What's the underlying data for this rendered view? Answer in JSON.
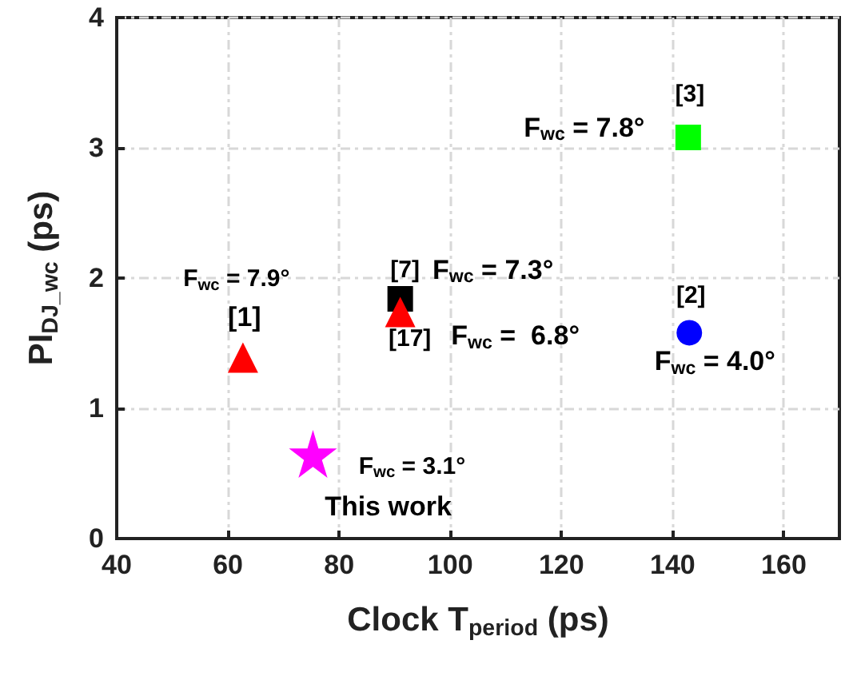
{
  "chart_data": {
    "type": "scatter",
    "xlabel": "Clock T$_{period}$ (ps)",
    "ylabel": "PI$_{DJ_wc}$ (ps)",
    "xlim": [
      40,
      170
    ],
    "xticks": [
      40,
      60,
      80,
      100,
      120,
      140,
      160
    ],
    "ylim": [
      0,
      4
    ],
    "yticks": [
      0,
      1,
      2,
      3,
      4
    ],
    "grid": true,
    "series": [
      {
        "color": "#ff0000",
        "marker": "triangle",
        "x": [
          62.7
        ],
        "values": [
          1.39
        ]
      },
      {
        "color": "#ff00ff",
        "marker": "star",
        "x": [
          75.3
        ],
        "values": [
          0.65
        ]
      },
      {
        "color": "#000000",
        "marker": "square",
        "x": [
          91
        ],
        "values": [
          1.84
        ]
      },
      {
        "color": "#ff0000",
        "marker": "triangle",
        "x": [
          91
        ],
        "values": [
          1.74
        ]
      },
      {
        "color": "#0000ff",
        "marker": "circle",
        "x": [
          143
        ],
        "values": [
          1.58
        ]
      },
      {
        "color": "#00ff00",
        "marker": "square",
        "x": [
          142.8
        ],
        "values": [
          3.08
        ]
      }
    ],
    "annotations": [
      {
        "text": "F$_{wc}$ = 7.9°",
        "x": 62.7,
        "y": 1.39
      },
      {
        "text": "[1]",
        "x": 62.7,
        "y": 1.39
      },
      {
        "text": "[7]",
        "x": 91,
        "y": 1.84
      },
      {
        "text": "F$_{wc}$ = 7.3°",
        "x": 91,
        "y": 1.84
      },
      {
        "text": "[17]",
        "x": 91,
        "y": 1.74
      },
      {
        "text": "F$_{wc}$ =  6.8°",
        "x": 91,
        "y": 1.74
      },
      {
        "text": "[2]",
        "x": 143,
        "y": 1.58
      },
      {
        "text": "F$_{wc}$ = 4.0°",
        "x": 143,
        "y": 1.58
      },
      {
        "text": "[3]",
        "x": 142.8,
        "y": 3.08
      },
      {
        "text": "F$_{wc}$ = 7.8°",
        "x": 142.8,
        "y": 3.08
      },
      {
        "text": "F$_{wc}$ = 3.1°",
        "x": 75.3,
        "y": 0.65
      },
      {
        "text": "This work",
        "x": 75.3,
        "y": 0.65
      }
    ]
  }
}
